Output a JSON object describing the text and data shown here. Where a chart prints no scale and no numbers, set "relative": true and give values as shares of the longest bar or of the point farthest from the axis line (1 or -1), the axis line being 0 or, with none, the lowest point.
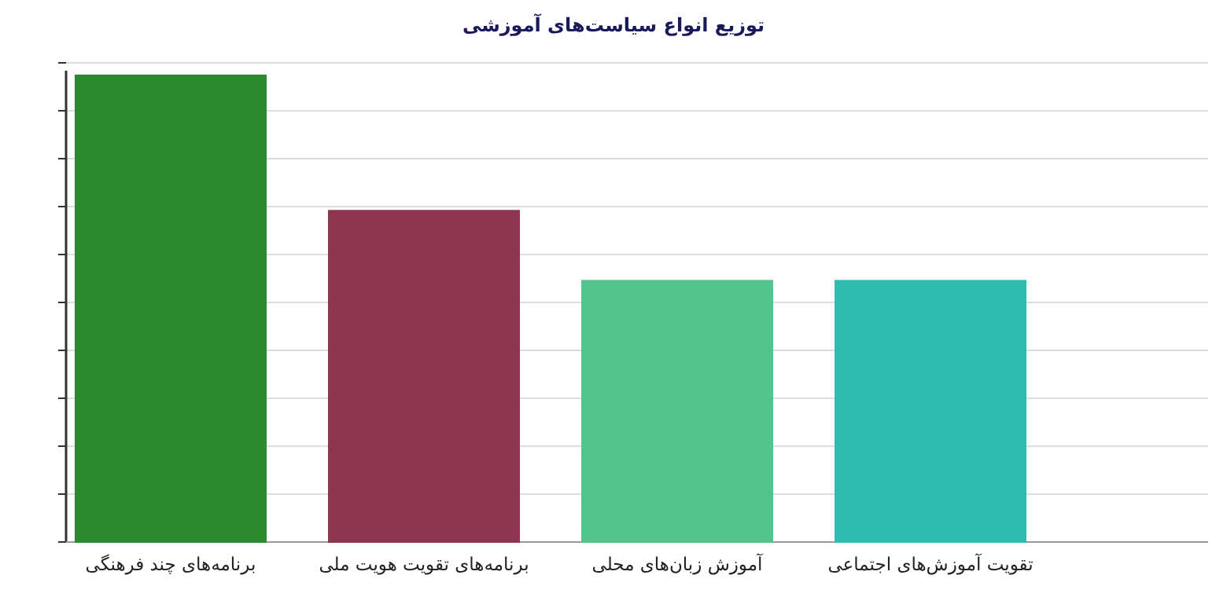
{
  "chart_data": {
    "type": "bar",
    "title": "توزیع انواع سیاست‌های آموزشی",
    "relative": true,
    "grid": "y",
    "categories": [
      "برنامه‌های چند فرهنگی",
      "برنامه‌های تقویت هویت ملی",
      "آموزش زبان‌های محلی",
      "تقویت آموزش‌های اجتماعی"
    ],
    "values": [
      1,
      0.71,
      0.56,
      0.56
    ],
    "colors": [
      "#2a8a2e",
      "#8e3552",
      "#52c48e",
      "#2dbcae"
    ]
  }
}
